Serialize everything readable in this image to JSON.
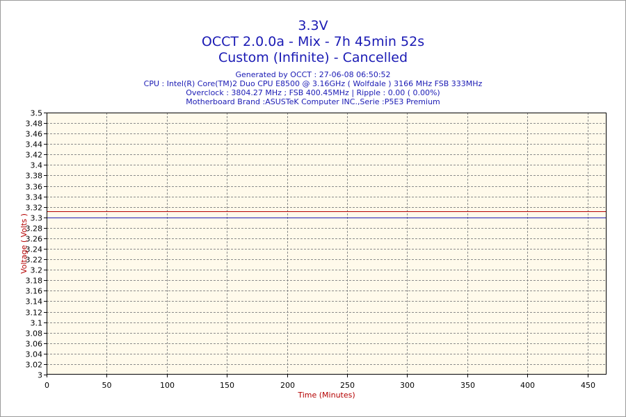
{
  "header": {
    "title": "3.3V",
    "subtitle1": "OCCT 2.0.0a - Mix - 7h 45min 52s",
    "subtitle2": "Custom (Infinite) - Cancelled",
    "info1": "Generated by OCCT : 27-06-08 06:50:52",
    "info2": "CPU : Intel(R) Core(TM)2 Duo CPU E8500 @ 3.16GHz ( Wolfdale ) 3166 MHz FSB 333MHz",
    "info3": "Overclock : 3804.27 MHz ; FSB 400.45MHz | Ripple : 0.00 ( 0.00%)",
    "info4": "Motherboard Brand :ASUSTeK Computer INC.,Serie :P5E3 Premium"
  },
  "chart_data": {
    "type": "line",
    "xlabel": "Time (Minutes)",
    "ylabel": "Voltage ( Volts )",
    "xlim": [
      0,
      465.87
    ],
    "ylim": [
      3,
      3.5
    ],
    "xticks": [
      0,
      50,
      100,
      150,
      200,
      250,
      300,
      350,
      400,
      450
    ],
    "yticks": [
      3,
      3.02,
      3.04,
      3.06,
      3.08,
      3.1,
      3.12,
      3.14,
      3.16,
      3.18,
      3.2,
      3.22,
      3.24,
      3.26,
      3.28,
      3.3,
      3.32,
      3.34,
      3.36,
      3.38,
      3.4,
      3.42,
      3.44,
      3.46,
      3.48,
      3.5
    ],
    "grid": true,
    "series": [
      {
        "x": [
          0,
          465.87
        ],
        "values": [
          3.312,
          3.312
        ],
        "color": "#b40000"
      },
      {
        "x": [
          0,
          465.87
        ],
        "values": [
          3.3,
          3.3
        ],
        "color": "#1a1ab4"
      }
    ],
    "colors": {
      "plot_bg": "#fffaeb",
      "grid": "#8a8a8a",
      "axis_text": "#000000",
      "label_text": "#b40000"
    }
  }
}
